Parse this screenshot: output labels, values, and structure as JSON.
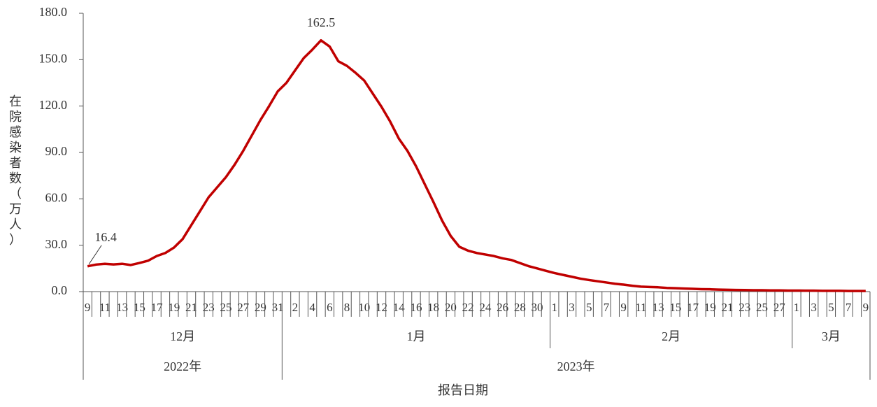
{
  "chart_data": {
    "type": "line",
    "y_label": "在院感染者数（万人）",
    "x_label": "报告日期",
    "ylim": [
      0,
      180
    ],
    "yticks": [
      {
        "value": 0,
        "label": "0.0"
      },
      {
        "value": 30,
        "label": "30.0"
      },
      {
        "value": 60,
        "label": "60.0"
      },
      {
        "value": 90,
        "label": "90.0"
      },
      {
        "value": 120,
        "label": "120.0"
      },
      {
        "value": 150,
        "label": "150.0"
      },
      {
        "value": 180,
        "label": "180.0"
      }
    ],
    "years": [
      {
        "label": "2022年",
        "months": [
          {
            "label": "12月",
            "days": [
              "9",
              null,
              "11",
              null,
              "13",
              null,
              "15",
              null,
              "17",
              null,
              "19",
              null,
              "21",
              null,
              "23",
              null,
              "25",
              null,
              "27",
              null,
              "29",
              null,
              "31"
            ]
          }
        ]
      },
      {
        "label": "2023年",
        "months": [
          {
            "label": "1月",
            "days": [
              null,
              "2",
              null,
              "4",
              null,
              "6",
              null,
              "8",
              null,
              "10",
              null,
              "12",
              null,
              "14",
              null,
              "16",
              null,
              "18",
              null,
              "20",
              null,
              "22",
              null,
              "24",
              null,
              "26",
              null,
              "28",
              null,
              "30",
              null
            ]
          },
          {
            "label": "2月",
            "days": [
              "1",
              null,
              "3",
              null,
              "5",
              null,
              "7",
              null,
              "9",
              null,
              "11",
              null,
              "13",
              null,
              "15",
              null,
              "17",
              null,
              "19",
              null,
              "21",
              null,
              "23",
              null,
              "25",
              null,
              "27",
              null
            ]
          },
          {
            "label": "3月",
            "days": [
              "1",
              null,
              "3",
              null,
              "5",
              null,
              "7",
              null,
              "9"
            ]
          }
        ]
      }
    ],
    "series": [
      {
        "color": "#c00000",
        "values": [
          16.4,
          17.5,
          18.0,
          17.6,
          18.0,
          17.2,
          18.5,
          20,
          23,
          25,
          28.5,
          34,
          43,
          52,
          61,
          67.5,
          74,
          82,
          91,
          101,
          111,
          120,
          129.5,
          135,
          143,
          151,
          156.5,
          162.5,
          158.5,
          149,
          146,
          141.5,
          136.5,
          128,
          119.5,
          110,
          99,
          91,
          81,
          69.5,
          58,
          46,
          36,
          29,
          26.5,
          25,
          24,
          23,
          21.5,
          20.5,
          18.5,
          16.5,
          15,
          13.5,
          12,
          10.8,
          9.6,
          8.4,
          7.5,
          6.7,
          5.9,
          5.1,
          4.5,
          3.8,
          3.2,
          3.0,
          2.8,
          2.4,
          2.2,
          2.0,
          1.8,
          1.6,
          1.5,
          1.3,
          1.2,
          1.1,
          1.0,
          0.9,
          0.9,
          0.8,
          0.8,
          0.7,
          0.7,
          0.6,
          0.6,
          0.5,
          0.5,
          0.5,
          0.4,
          0.4,
          0.4
        ],
        "value_labels": [
          "16.4",
          null,
          null,
          null,
          null,
          null,
          null,
          null,
          null,
          null,
          null,
          null,
          null,
          null,
          null,
          null,
          null,
          null,
          null,
          null,
          null,
          null,
          null,
          null,
          null,
          null,
          null,
          "162.5",
          null,
          null,
          null,
          null,
          null,
          null,
          null,
          null,
          null,
          null,
          null,
          null,
          null,
          null,
          null,
          null,
          null,
          null,
          null,
          null,
          null,
          null,
          null,
          null,
          null,
          null,
          null,
          null,
          null,
          null,
          null,
          null,
          null,
          null,
          null,
          null,
          null,
          null,
          null,
          null,
          null,
          null,
          null,
          null,
          null,
          null,
          null,
          null,
          null,
          null,
          null,
          null,
          null,
          null,
          null,
          null,
          null,
          null,
          null,
          null,
          null,
          null,
          null
        ]
      }
    ]
  }
}
